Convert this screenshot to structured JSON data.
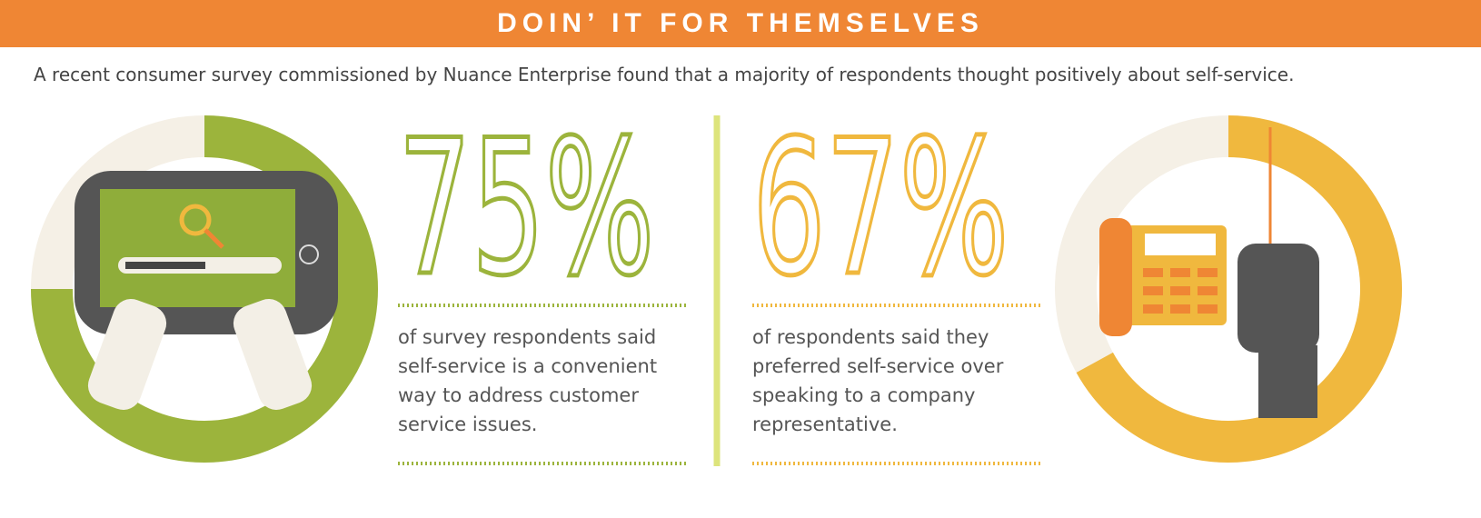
{
  "header": {
    "title": "DOIN’ IT FOR THEMSELVES"
  },
  "intro": "A recent consumer survey commissioned by Nuance Enterprise found that a majority of respondents thought positively about self-service.",
  "stats": [
    {
      "value": 75,
      "value_label": "75%",
      "text": "of survey respondents said self-service is a convenient way to address customer service issues.",
      "color": "#9cb43c"
    },
    {
      "value": 67,
      "value_label": "67%",
      "text": "of respondents said they preferred self-service over speaking to a company representative.",
      "color": "#f0b83e"
    }
  ]
}
